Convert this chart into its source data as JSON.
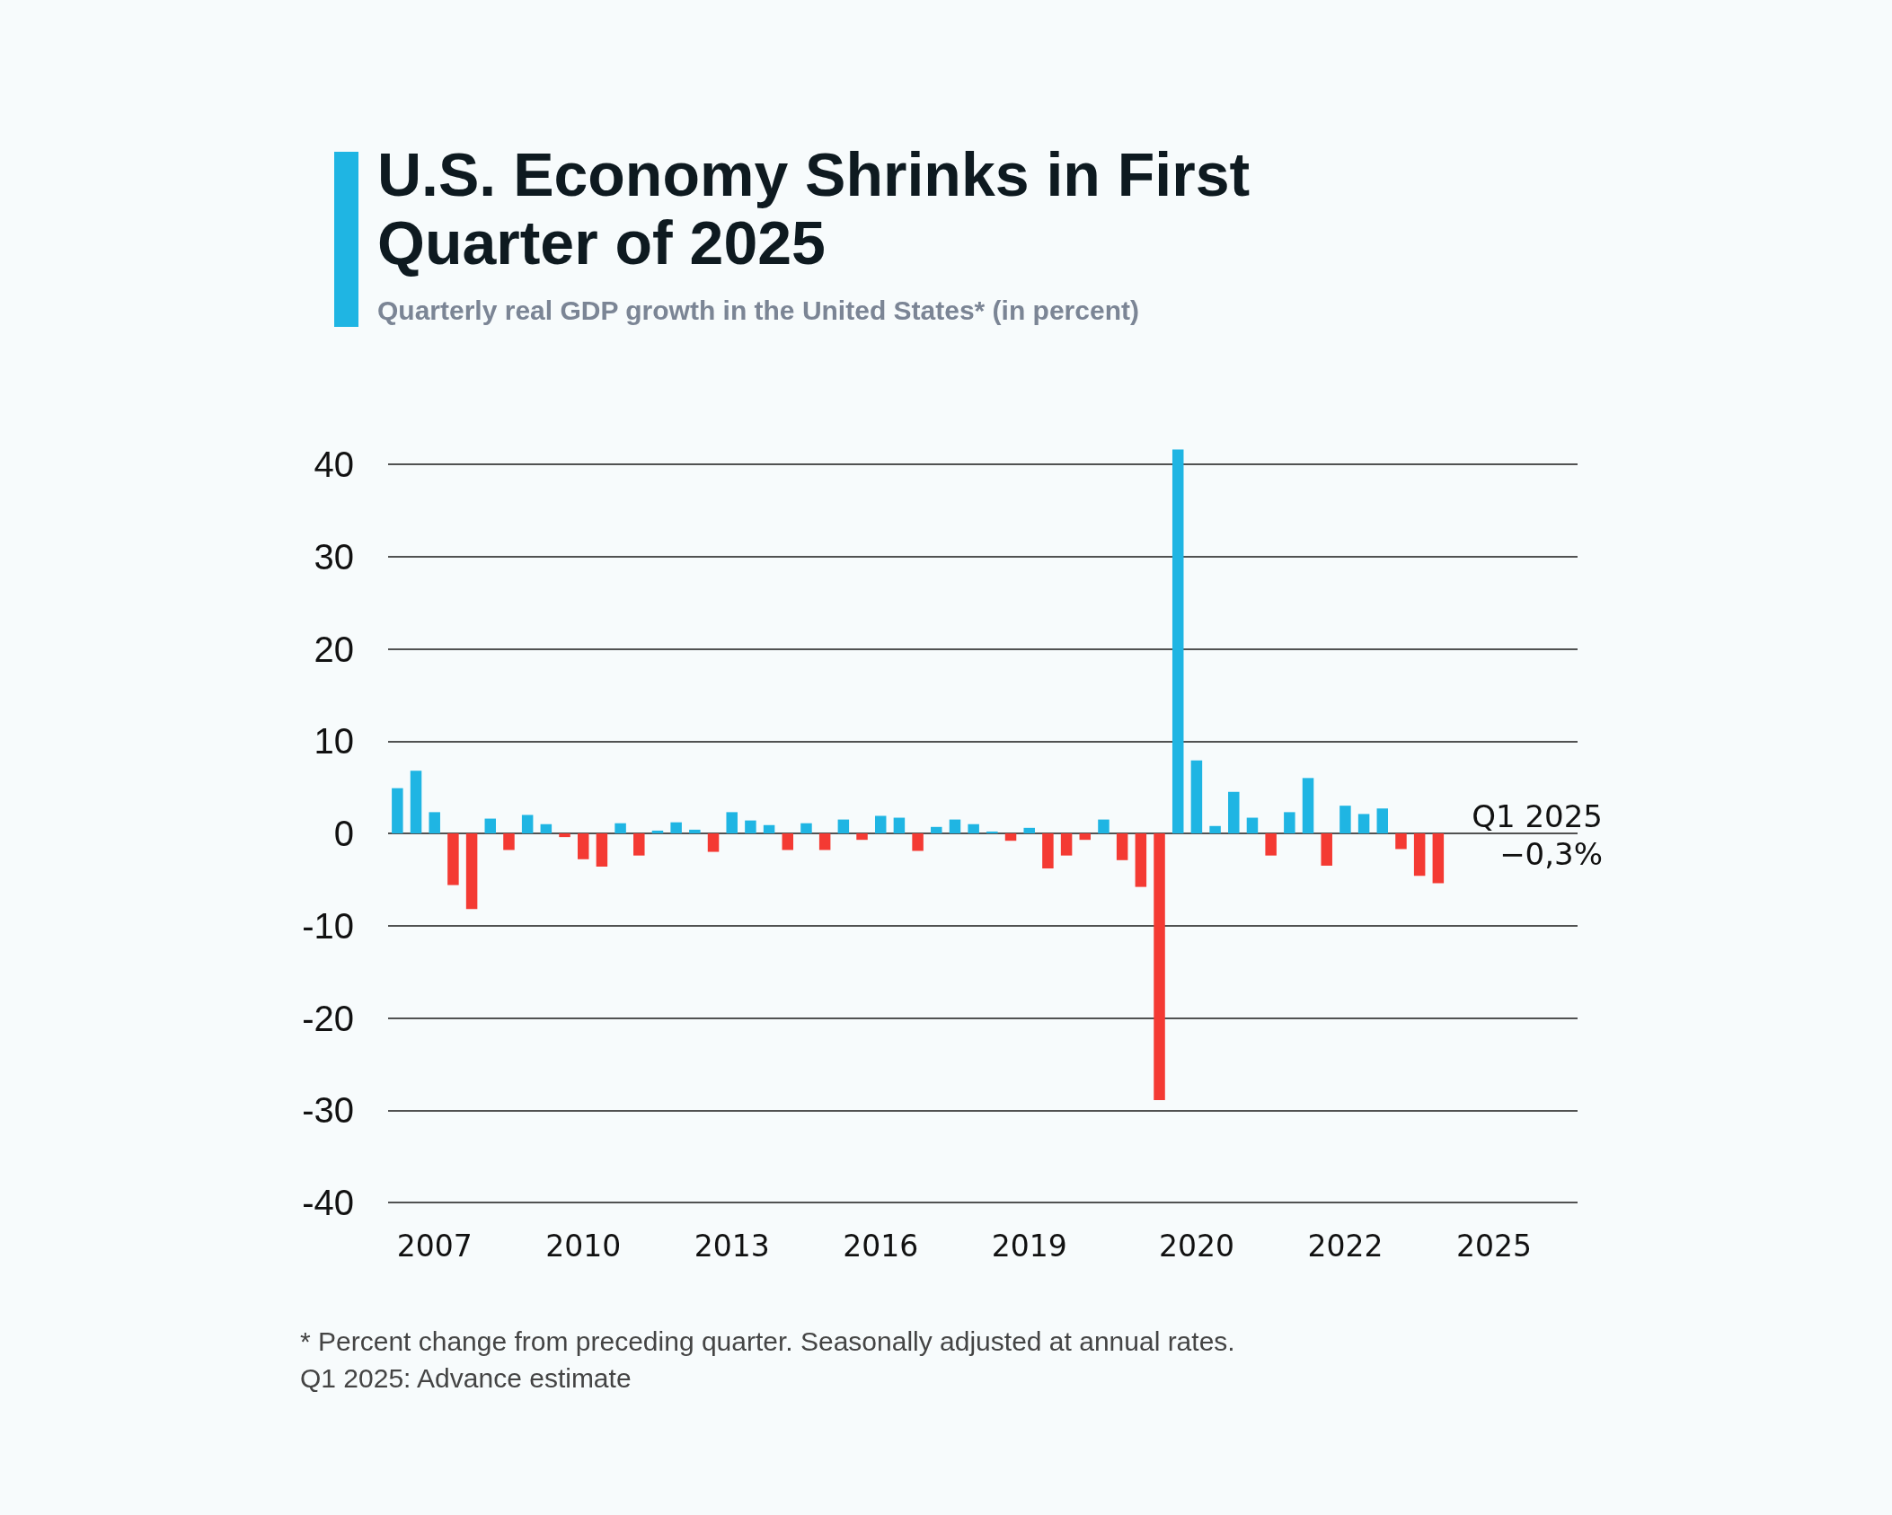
{
  "chart_data": {
    "type": "bar",
    "title": "U.S. Economy Shrinks in First Quarter of 2025",
    "subtitle": "Quarterly real GDP growth in the United States* (in percent)",
    "annotations": [
      "Q1 2025\n−0,3%",
      "* Percent change from preceding quarter. Seasonally adjusted at annual rates.",
      "Q1 2025: Advance estimate"
    ],
    "categories": [
      null,
      null,
      "2007",
      null,
      null,
      null,
      null,
      null,
      null,
      null,
      "2010",
      null,
      null,
      null,
      null,
      null,
      null,
      null,
      "2013",
      null,
      null,
      null,
      null,
      null,
      null,
      null,
      "2016",
      null,
      null,
      null,
      null,
      null,
      null,
      null,
      "2019",
      null,
      null,
      null,
      null,
      null,
      null,
      null,
      null,
      "2020",
      null,
      null,
      null,
      null,
      null,
      null,
      null,
      "2022",
      null,
      null,
      null,
      null,
      null,
      null,
      null,
      "2025",
      null,
      null,
      null,
      null
    ],
    "values": [
      4.9,
      6.8,
      2.3,
      -5.6,
      -8.2,
      1.6,
      -1.8,
      2.0,
      1.0,
      -0.4,
      -2.8,
      -3.6,
      1.1,
      -2.4,
      0.3,
      1.2,
      0.4,
      -2.0,
      2.3,
      1.4,
      0.9,
      -1.8,
      1.1,
      -1.8,
      1.5,
      -0.7,
      1.9,
      1.7,
      -1.9,
      0.7,
      1.5,
      1.0,
      0.2,
      -0.8,
      0.6,
      -3.8,
      -2.4,
      -0.7,
      1.5,
      -2.9,
      -5.8,
      -28.9,
      41.6,
      7.9,
      0.8,
      4.5,
      1.7,
      -2.4,
      2.3,
      6.0,
      -3.5,
      3.0,
      2.1,
      2.7,
      -1.7,
      -4.6,
      -5.4,
      null,
      null,
      null,
      null,
      null,
      null,
      null
    ],
    "colors": [
      "#1fb5e3",
      "#1fb5e3",
      "#1fb5e3",
      "#f43a33",
      "#f43a33",
      "#1fb5e3",
      "#f43a33",
      "#1fb5e3",
      "#1fb5e3",
      "#f43a33",
      "#f43a33",
      "#f43a33",
      "#1fb5e3",
      "#f43a33",
      "#1fb5e3",
      "#1fb5e3",
      "#1fb5e3",
      "#f43a33",
      "#1fb5e3",
      "#1fb5e3",
      "#1fb5e3",
      "#f43a33",
      "#1fb5e3",
      "#f43a33",
      "#1fb5e3",
      "#f43a33",
      "#1fb5e3",
      "#1fb5e3",
      "#f43a33",
      "#1fb5e3",
      "#1fb5e3",
      "#1fb5e3",
      "#1fb5e3",
      "#f43a33",
      "#1fb5e3",
      "#f43a33",
      "#f43a33",
      "#f43a33",
      "#1fb5e3",
      "#f43a33",
      "#f43a33",
      "#f43a33",
      "#1fb5e3",
      "#1fb5e3",
      "#1fb5e3",
      "#1fb5e3",
      "#1fb5e3",
      "#f43a33",
      "#1fb5e3",
      "#1fb5e3",
      "#f43a33",
      "#1fb5e3",
      "#1fb5e3",
      "#1fb5e3",
      "#f43a33",
      "#f43a33",
      "#f43a33",
      null,
      null,
      null,
      null,
      null,
      null,
      null
    ],
    "ylim": [
      -40,
      42
    ],
    "yticks": [
      -40,
      -30,
      -20,
      -10,
      0,
      10,
      20,
      30,
      40
    ],
    "grid": "y"
  }
}
